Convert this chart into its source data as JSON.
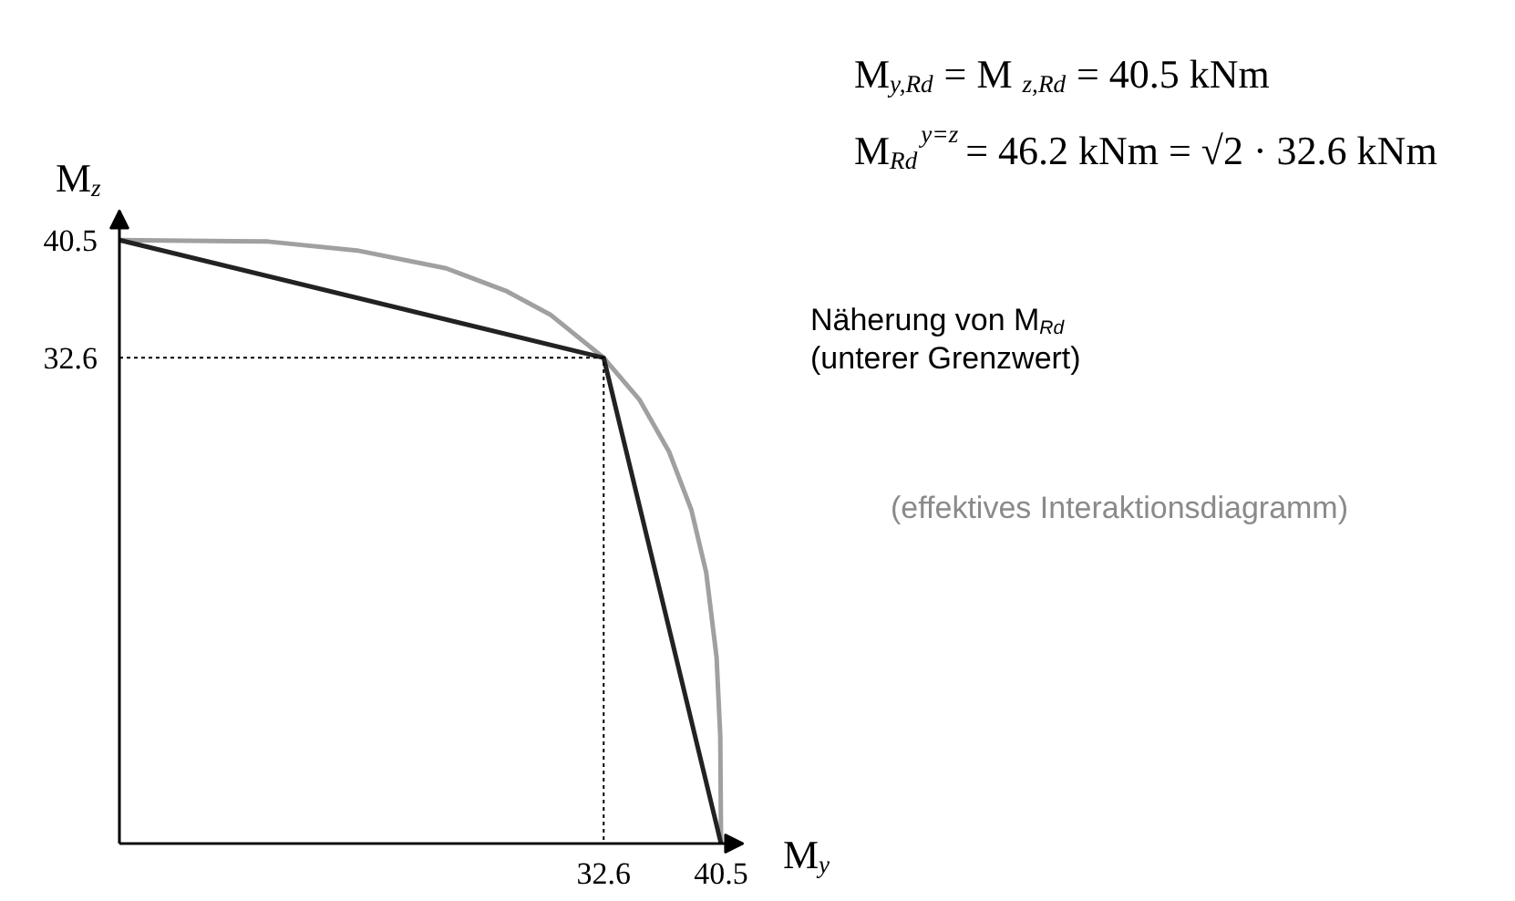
{
  "chart_data": {
    "type": "line",
    "xlabel": "M$_{y}$",
    "ylabel": "M$_{z}$",
    "xlim": [
      0,
      42
    ],
    "ylim": [
      0,
      42.5
    ],
    "xticks": [
      32.6,
      40.5
    ],
    "yticks": [
      32.6,
      40.5
    ],
    "grid": false,
    "series": [
      {
        "color": "#a0a0a0",
        "x": [
          0,
          10,
          16,
          22,
          26,
          29,
          32.6,
          35,
          37,
          38.5,
          39.5,
          40.2,
          40.45,
          40.5
        ],
        "values": [
          40.5,
          40.4,
          39.8,
          38.6,
          37.1,
          35.5,
          32.6,
          29.8,
          26.3,
          22.4,
          18.2,
          12.5,
          7.2,
          0
        ]
      },
      {
        "color": "#222222",
        "x": [
          0,
          32.6,
          40.5
        ],
        "values": [
          40.5,
          32.6,
          0
        ]
      },
      {
        "color": "#000000",
        "line_style": "dotted",
        "x": [
          0,
          32.6,
          32.6
        ],
        "values": [
          32.6,
          32.6,
          0
        ]
      }
    ],
    "annotations": [
      "M$_{y,Rd}$ = M$_{z,Rd}$ = 40.5 kNm",
      "M$_{Rd}$$^{y=z}$ = 46.2 kNm = √2 · 32.6 kNm",
      "Näherung von M$_{Rd}$\n(unterer Grenzwert)",
      "(effektives Interaktionsdiagramm)"
    ]
  }
}
